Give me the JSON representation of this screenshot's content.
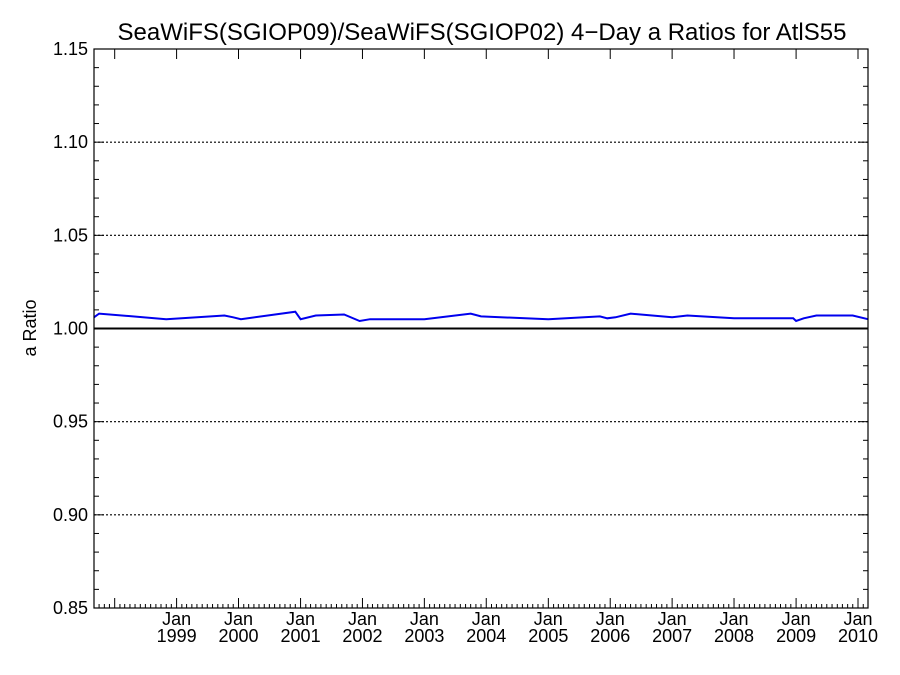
{
  "chart_data": {
    "type": "line",
    "title": "SeaWiFS(SGIOP09)/SeaWiFS(SGIOP02) 4−Day a Ratios for AtlS55",
    "xlabel": "",
    "ylabel": "a Ratio",
    "ylim": [
      0.85,
      1.15
    ],
    "xlim": [
      "1997-09-01",
      "2010-03-01"
    ],
    "y_ticks": [
      "0.85",
      "0.90",
      "0.95",
      "1.00",
      "1.05",
      "1.10",
      "1.15"
    ],
    "y_gridlines": [
      0.9,
      0.95,
      1.05,
      1.1
    ],
    "reference_line": 1.0,
    "x_ticks": [
      {
        "date": "1999-01-01",
        "month": "Jan",
        "year": "1999"
      },
      {
        "date": "2000-01-01",
        "month": "Jan",
        "year": "2000"
      },
      {
        "date": "2001-01-01",
        "month": "Jan",
        "year": "2001"
      },
      {
        "date": "2002-01-01",
        "month": "Jan",
        "year": "2002"
      },
      {
        "date": "2003-01-01",
        "month": "Jan",
        "year": "2003"
      },
      {
        "date": "2004-01-01",
        "month": "Jan",
        "year": "2004"
      },
      {
        "date": "2005-01-01",
        "month": "Jan",
        "year": "2005"
      },
      {
        "date": "2006-01-01",
        "month": "Jan",
        "year": "2006"
      },
      {
        "date": "2007-01-01",
        "month": "Jan",
        "year": "2007"
      },
      {
        "date": "2008-01-01",
        "month": "Jan",
        "year": "2008"
      },
      {
        "date": "2009-01-01",
        "month": "Jan",
        "year": "2009"
      },
      {
        "date": "2010-01-01",
        "month": "Jan",
        "year": "2010"
      }
    ],
    "series": [
      {
        "color": "#0000ee",
        "points": [
          {
            "x": "1997-09-01",
            "y": 1.006
          },
          {
            "x": "1997-10-01",
            "y": 1.008
          },
          {
            "x": "1998-11-01",
            "y": 1.005
          },
          {
            "x": "1999-10-10",
            "y": 1.007
          },
          {
            "x": "1999-12-01",
            "y": 1.006
          },
          {
            "x": "2000-01-15",
            "y": 1.005
          },
          {
            "x": "2000-12-01",
            "y": 1.009
          },
          {
            "x": "2001-01-01",
            "y": 1.005
          },
          {
            "x": "2001-04-01",
            "y": 1.007
          },
          {
            "x": "2001-09-15",
            "y": 1.0075
          },
          {
            "x": "2001-12-15",
            "y": 1.004
          },
          {
            "x": "2002-02-15",
            "y": 1.005
          },
          {
            "x": "2003-01-01",
            "y": 1.005
          },
          {
            "x": "2003-10-01",
            "y": 1.008
          },
          {
            "x": "2003-12-01",
            "y": 1.0065
          },
          {
            "x": "2005-01-01",
            "y": 1.005
          },
          {
            "x": "2005-11-01",
            "y": 1.0065
          },
          {
            "x": "2005-12-15",
            "y": 1.0055
          },
          {
            "x": "2006-02-01",
            "y": 1.006
          },
          {
            "x": "2006-05-01",
            "y": 1.008
          },
          {
            "x": "2007-01-01",
            "y": 1.006
          },
          {
            "x": "2007-04-01",
            "y": 1.007
          },
          {
            "x": "2008-01-01",
            "y": 1.0055
          },
          {
            "x": "2008-12-15",
            "y": 1.0055
          },
          {
            "x": "2009-01-01",
            "y": 1.004
          },
          {
            "x": "2009-02-15",
            "y": 1.0055
          },
          {
            "x": "2009-05-01",
            "y": 1.007
          },
          {
            "x": "2009-12-01",
            "y": 1.007
          },
          {
            "x": "2010-03-01",
            "y": 1.005
          }
        ]
      }
    ]
  }
}
